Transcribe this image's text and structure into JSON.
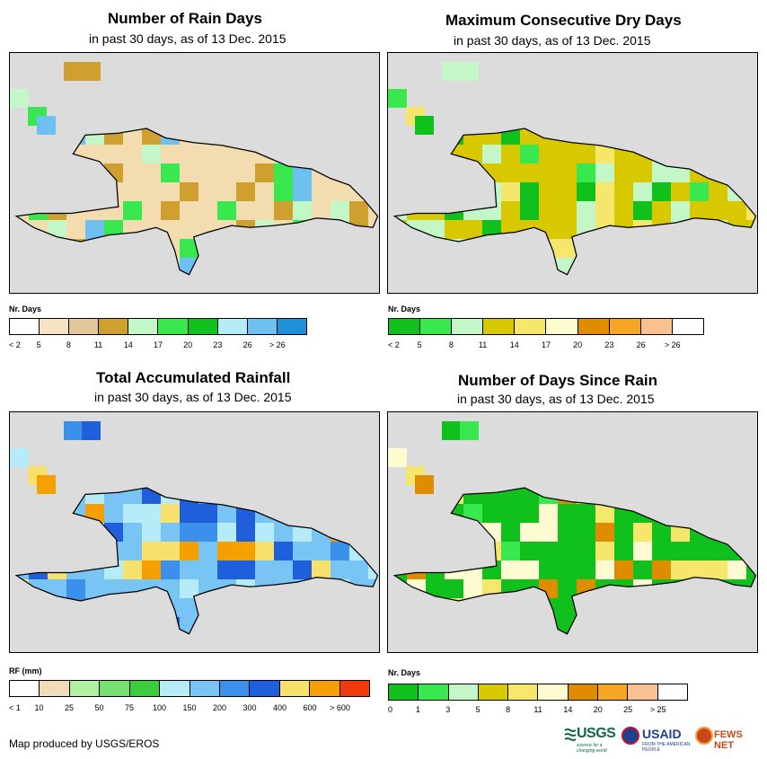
{
  "panels": [
    {
      "id": "rain-days",
      "title": "Number of Rain Days",
      "subtitle": "in past 30 days, as of 13 Dec. 2015",
      "legend_title": "Nr. Days",
      "legend_colors": [
        "#ffffff",
        "#f5e3c4",
        "#e2c898",
        "#cfa030",
        "#c4f7c8",
        "#38e84e",
        "#10c01c",
        "#b6ecf7",
        "#6ec0f0",
        "#1f8fd8"
      ],
      "legend_labels": [
        "< 2",
        "5",
        "8",
        "11",
        "14",
        "17",
        "20",
        "23",
        "26",
        "> 26"
      ],
      "base_color": "#f2dcb0",
      "accent_colors": [
        "#cfa030",
        "#cfa030",
        "#c4f7c8",
        "#38e84e",
        "#6ec0f0"
      ]
    },
    {
      "id": "max-dry-days",
      "title": "Maximum Consecutive Dry Days",
      "subtitle": "in past 30 days, as of 13 Dec. 2015",
      "legend_title": "Nr. Days",
      "legend_colors": [
        "#10c01c",
        "#38e84e",
        "#c4f7c8",
        "#d7c800",
        "#f7e66c",
        "#fffbd0",
        "#e08c00",
        "#f5a623",
        "#f9c090",
        "#ffffff"
      ],
      "legend_labels": [
        "< 2",
        "5",
        "8",
        "11",
        "14",
        "17",
        "20",
        "23",
        "26",
        "> 26"
      ],
      "base_color": "#d7c800",
      "accent_colors": [
        "#c4f7c8",
        "#c4f7c8",
        "#38e84e",
        "#f7e66c",
        "#10c01c"
      ]
    },
    {
      "id": "total-rainfall",
      "title": "Total Accumulated Rainfall",
      "subtitle": "in past 30 days, as of 13 Dec. 2015",
      "legend_title": "RF (mm)",
      "legend_colors": [
        "#ffffff",
        "#f0dcb8",
        "#b0f0a0",
        "#78e070",
        "#3ccc3c",
        "#b6ecf7",
        "#78c4f5",
        "#3a90ea",
        "#1f5fdc",
        "#f7e06c",
        "#f5a000",
        "#f03a0a"
      ],
      "legend_labels": [
        "< 1",
        "10",
        "25",
        "50",
        "75",
        "100",
        "150",
        "200",
        "300",
        "400",
        "600",
        "> 600"
      ],
      "base_color": "#78c4f5",
      "accent_colors": [
        "#3a90ea",
        "#1f5fdc",
        "#b6ecf7",
        "#f7e06c",
        "#f5a000"
      ]
    },
    {
      "id": "days-since-rain",
      "title": "Number of Days Since Rain",
      "subtitle": "in past 30 days, as of 13 Dec. 2015",
      "legend_title": "Nr. Days",
      "legend_colors": [
        "#10c01c",
        "#38e84e",
        "#c4f7c8",
        "#d7c800",
        "#f7e66c",
        "#fffbd0",
        "#e08c00",
        "#f5a623",
        "#f9c090",
        "#ffffff"
      ],
      "legend_labels": [
        "0",
        "1",
        "3",
        "5",
        "8",
        "11",
        "14",
        "20",
        "25",
        "> 25"
      ],
      "base_color": "#10c01c",
      "accent_colors": [
        "#10c01c",
        "#38e84e",
        "#fffbd0",
        "#f7e66c",
        "#e08c00"
      ]
    }
  ],
  "footer": {
    "credit": "Map produced by USGS/EROS"
  },
  "logos": {
    "usgs": "USGS",
    "usgs_tagline": "science for a changing world",
    "usaid": "USAID",
    "usaid_tagline": "FROM THE AMERICAN PEOPLE",
    "fews": "FEWS NET"
  },
  "map_background_color": "#dcdcdc"
}
